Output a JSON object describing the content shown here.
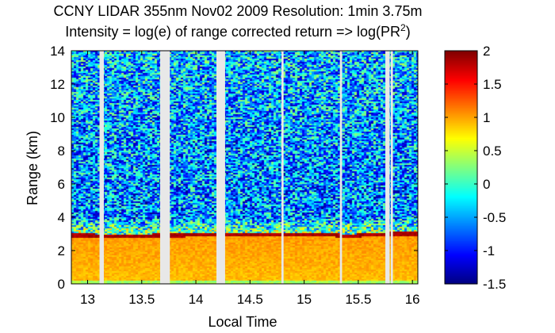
{
  "chart_data": {
    "type": "heatmap",
    "title": "CCNY LIDAR 355nm Nov02 2009 Resolution: 1min 3.75m",
    "subtitle": {
      "prefix": "Intensity = log(e) of range corrected return => log(PR",
      "superscript": "2",
      "suffix": ")"
    },
    "xlabel": "Local Time",
    "ylabel": "Range (km)",
    "xlim": [
      12.85,
      16.05
    ],
    "ylim": [
      0,
      14
    ],
    "xticks": [
      13,
      13.5,
      14,
      14.5,
      15,
      15.5,
      16
    ],
    "xtick_labels": [
      "13",
      "13.5",
      "14",
      "14.5",
      "15",
      "15.5",
      "16"
    ],
    "yticks": [
      0,
      2,
      4,
      6,
      8,
      10,
      12,
      14
    ],
    "ytick_labels": [
      "0",
      "2",
      "4",
      "6",
      "8",
      "10",
      "12",
      "14"
    ],
    "colorbar": {
      "range": [
        -1.5,
        2
      ],
      "ticks": [
        2,
        1.5,
        1,
        0.5,
        0,
        -0.5,
        -1,
        -1.5
      ],
      "tick_labels": [
        "2",
        "1.5",
        "1",
        "0.5",
        "0",
        "-0.5",
        "-1",
        "-1.5"
      ],
      "colormap": "jet"
    },
    "data_gaps": [
      {
        "start": 13.11,
        "end": 13.15
      },
      {
        "start": 13.67,
        "end": 13.76
      },
      {
        "start": 14.19,
        "end": 14.27
      },
      {
        "start": 14.79,
        "end": 14.81
      },
      {
        "start": 15.33,
        "end": 15.35
      },
      {
        "start": 15.75,
        "end": 15.79
      },
      {
        "start": 15.8,
        "end": 15.82
      }
    ],
    "boundary_layer_top_km": [
      {
        "x": 12.85,
        "y": 2.92
      },
      {
        "x": 13.3,
        "y": 2.88
      },
      {
        "x": 13.6,
        "y": 2.9
      },
      {
        "x": 14.0,
        "y": 2.94
      },
      {
        "x": 14.4,
        "y": 2.97
      },
      {
        "x": 14.8,
        "y": 2.98
      },
      {
        "x": 15.25,
        "y": 2.95
      },
      {
        "x": 15.4,
        "y": 2.85
      },
      {
        "x": 15.6,
        "y": 2.98
      },
      {
        "x": 16.05,
        "y": 3.02
      }
    ],
    "mean_intensity_profile": [
      {
        "range_km": 0.1,
        "value": 0.4
      },
      {
        "range_km": 0.4,
        "value": 0.85
      },
      {
        "range_km": 2.0,
        "value": 0.9
      },
      {
        "range_km": 2.85,
        "value": 1.05
      },
      {
        "range_km": 2.95,
        "value": 1.85
      },
      {
        "range_km": 3.1,
        "value": 0.2
      },
      {
        "range_km": 4.0,
        "value": -0.6
      },
      {
        "range_km": 8.0,
        "value": -0.55
      },
      {
        "range_km": 14.0,
        "value": -0.4
      }
    ]
  }
}
